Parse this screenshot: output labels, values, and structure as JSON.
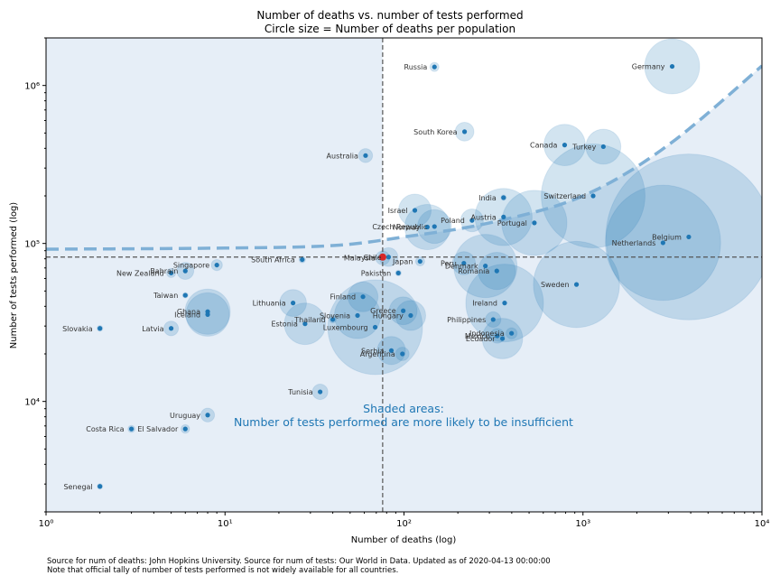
{
  "chart_data": {
    "type": "scatter",
    "title": "Number of deaths vs. number of tests performed",
    "subtitle": "Circle size = Number of deaths per population",
    "xlabel": "Number of deaths (log)",
    "ylabel": "Number of tests performed (log)",
    "x_scale": "log",
    "y_scale": "log",
    "xlim": [
      1,
      10000
    ],
    "ylim": [
      2000,
      2000000
    ],
    "x_ticks": [
      {
        "value": 1,
        "label": "10⁰"
      },
      {
        "value": 10,
        "label": "10¹"
      },
      {
        "value": 100,
        "label": "10²"
      },
      {
        "value": 1000,
        "label": "10³"
      },
      {
        "value": 10000,
        "label": "10⁴"
      }
    ],
    "y_ticks": [
      {
        "value": 10000,
        "label": "10⁴"
      },
      {
        "value": 100000,
        "label": "10⁵"
      },
      {
        "value": 1000000,
        "label": "10⁶"
      }
    ],
    "reference_lines": {
      "vertical_x": 76,
      "horizontal_y": 82000
    },
    "highlight_point": {
      "x": 76,
      "y": 82000
    },
    "trend_curve": [
      [
        1,
        92000
      ],
      [
        10,
        93500
      ],
      [
        40,
        97000
      ],
      [
        100,
        110000
      ],
      [
        300,
        135000
      ],
      [
        1000,
        200000
      ],
      [
        3000,
        420000
      ],
      [
        10000,
        1330000
      ]
    ],
    "annotation_line1": "Shaded areas:",
    "annotation_line2": "Number of tests performed are more likely to be insufficient",
    "points": [
      {
        "label": "Russia",
        "x": 148,
        "y": 1310000,
        "size": 1.0
      },
      {
        "label": "Germany",
        "x": 3150,
        "y": 1320000,
        "size": 37
      },
      {
        "label": "South Korea",
        "x": 218,
        "y": 510000,
        "size": 4.3
      },
      {
        "label": "Australia",
        "x": 61,
        "y": 360000,
        "size": 2.4
      },
      {
        "label": "Canada",
        "x": 790,
        "y": 420000,
        "size": 21
      },
      {
        "label": "Turkey",
        "x": 1300,
        "y": 410000,
        "size": 15
      },
      {
        "label": "India",
        "x": 360,
        "y": 195000,
        "size": 0.3
      },
      {
        "label": "Switzerland",
        "x": 1140,
        "y": 200000,
        "size": 132
      },
      {
        "label": "Israel",
        "x": 115,
        "y": 162000,
        "size": 13
      },
      {
        "label": "Austria",
        "x": 360,
        "y": 147000,
        "size": 40
      },
      {
        "label": "Poland",
        "x": 240,
        "y": 140000,
        "size": 6.3
      },
      {
        "label": "Portugal",
        "x": 535,
        "y": 135000,
        "size": 52
      },
      {
        "label": "Norway",
        "x": 135,
        "y": 127000,
        "size": 25
      },
      {
        "label": "Czech Republic",
        "x": 148,
        "y": 128000,
        "size": 14
      },
      {
        "label": "Belgium",
        "x": 3900,
        "y": 110000,
        "size": 337
      },
      {
        "label": "Netherlands",
        "x": 2800,
        "y": 101000,
        "size": 163
      },
      {
        "label": "Chile",
        "x": 82,
        "y": 82000,
        "size": 4.3
      },
      {
        "label": "Malaysia",
        "x": 76,
        "y": 81000,
        "size": 2.4
      },
      {
        "label": "South Africa",
        "x": 27,
        "y": 79000,
        "size": 0.5
      },
      {
        "label": "Japan",
        "x": 123,
        "y": 77000,
        "size": 1.0
      },
      {
        "label": "Singapore",
        "x": 9,
        "y": 73000,
        "size": 1.5
      },
      {
        "label": "Peru",
        "x": 216,
        "y": 75000,
        "size": 6.5
      },
      {
        "label": "Denmark",
        "x": 285,
        "y": 72000,
        "size": 49
      },
      {
        "label": "Romania",
        "x": 330,
        "y": 67000,
        "size": 17
      },
      {
        "label": "Bahrain",
        "x": 6,
        "y": 67000,
        "size": 3.5
      },
      {
        "label": "Pakistan",
        "x": 93,
        "y": 65000,
        "size": 0.4
      },
      {
        "label": "New Zealand",
        "x": 5,
        "y": 65000,
        "size": 1.0
      },
      {
        "label": "Sweden",
        "x": 920,
        "y": 55000,
        "size": 91
      },
      {
        "label": "Taiwan",
        "x": 6,
        "y": 47000,
        "size": 0.3
      },
      {
        "label": "Finland",
        "x": 59,
        "y": 46000,
        "size": 11
      },
      {
        "label": "Ireland",
        "x": 365,
        "y": 42000,
        "size": 74
      },
      {
        "label": "Lithuania",
        "x": 24,
        "y": 42000,
        "size": 8.8
      },
      {
        "label": "Ghana",
        "x": 8,
        "y": 37000,
        "size": 25
      },
      {
        "label": "Greece",
        "x": 99,
        "y": 37500,
        "size": 9.5
      },
      {
        "label": "Iceland",
        "x": 8,
        "y": 35500,
        "size": 23
      },
      {
        "label": "Slovenia",
        "x": 55,
        "y": 35000,
        "size": 26
      },
      {
        "label": "Hungary",
        "x": 109,
        "y": 35000,
        "size": 11
      },
      {
        "label": "Philippines",
        "x": 315,
        "y": 33000,
        "size": 2.9
      },
      {
        "label": "Thailand",
        "x": 40,
        "y": 33000,
        "size": 0.6
      },
      {
        "label": "Estonia",
        "x": 28,
        "y": 31000,
        "size": 21
      },
      {
        "label": "Luxembourg",
        "x": 69,
        "y": 29500,
        "size": 110
      },
      {
        "label": "Slovakia",
        "x": 2,
        "y": 29000,
        "size": 0.4
      },
      {
        "label": "Latvia",
        "x": 5,
        "y": 29000,
        "size": 2.6
      },
      {
        "label": "Indonesia",
        "x": 399,
        "y": 27000,
        "size": 1.5
      },
      {
        "label": "Mexico",
        "x": 332,
        "y": 26000,
        "size": 2.6
      },
      {
        "label": "Ecuador",
        "x": 355,
        "y": 25000,
        "size": 20
      },
      {
        "label": "Serbia",
        "x": 85,
        "y": 21000,
        "size": 9.7
      },
      {
        "label": "Argentina",
        "x": 98,
        "y": 20000,
        "size": 2.2
      },
      {
        "label": "Tunisia",
        "x": 34,
        "y": 11500,
        "size": 2.9
      },
      {
        "label": "Uruguay",
        "x": 8,
        "y": 8200,
        "size": 2.3
      },
      {
        "label": "El Salvador",
        "x": 6,
        "y": 6700,
        "size": 0.9
      },
      {
        "label": "Costa Rica",
        "x": 3,
        "y": 6700,
        "size": 0.6
      },
      {
        "label": "Senegal",
        "x": 2,
        "y": 2900,
        "size": 0.1
      }
    ]
  },
  "footnote_line1": "Source for num of deaths: John Hopkins University. Source for num of tests: Our World in Data. Updated as of 2020-04-13 00:00:00",
  "footnote_line2": "Note that official tally of number of tests performed is not widely available for all countries.",
  "colors": {
    "point": "#1f77b4",
    "bubble": "#1f77b4",
    "shade": "#e6eef7",
    "trend": "#7fb0d6",
    "highlight": "#d62728",
    "annotation": "#1f77b4",
    "refline": "#555555"
  }
}
